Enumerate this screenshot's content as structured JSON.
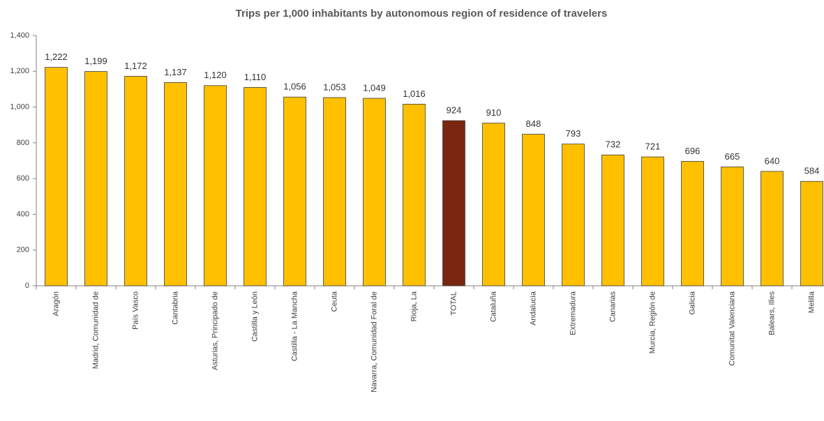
{
  "chart_data": {
    "type": "bar",
    "title": "Trips per 1,000 inhabitants by autonomous region of residence of travelers",
    "categories": [
      "Aragón",
      "Madrid, Comunidad de",
      "País Vasco",
      "Cantabria",
      "Asturias, Principado de",
      "Castilla y León",
      "Castilla - La Mancha",
      "Ceuta",
      "Navarra, Comunidad Foral de",
      "Rioja, La",
      "TOTAL",
      "Cataluña",
      "Andalucía",
      "Extremadura",
      "Canarias",
      "Murcia, Región de",
      "Galicia",
      "Comunitat Valenciana",
      "Balears, Illes",
      "Melilla"
    ],
    "values": [
      1222,
      1199,
      1172,
      1137,
      1120,
      1110,
      1056,
      1053,
      1049,
      1016,
      924,
      910,
      848,
      793,
      732,
      721,
      696,
      665,
      640,
      584
    ],
    "value_labels": [
      "1,222",
      "1,199",
      "1,172",
      "1,137",
      "1,120",
      "1,110",
      "1,056",
      "1,053",
      "1,049",
      "1,016",
      "924",
      "910",
      "848",
      "793",
      "732",
      "721",
      "696",
      "665",
      "640",
      "584"
    ],
    "colors": [
      "#ffc000",
      "#ffc000",
      "#ffc000",
      "#ffc000",
      "#ffc000",
      "#ffc000",
      "#ffc000",
      "#ffc000",
      "#ffc000",
      "#ffc000",
      "#7b2610",
      "#ffc000",
      "#ffc000",
      "#ffc000",
      "#ffc000",
      "#ffc000",
      "#ffc000",
      "#ffc000",
      "#ffc000",
      "#ffc000"
    ],
    "ylim": [
      0,
      1400
    ],
    "yticks": [
      0,
      200,
      400,
      600,
      800,
      {
        "value": 1000,
        "label": "1,000"
      },
      {
        "value": 1200,
        "label": "1,200"
      },
      {
        "value": 1400,
        "label": "1,400"
      }
    ],
    "grid": false
  }
}
